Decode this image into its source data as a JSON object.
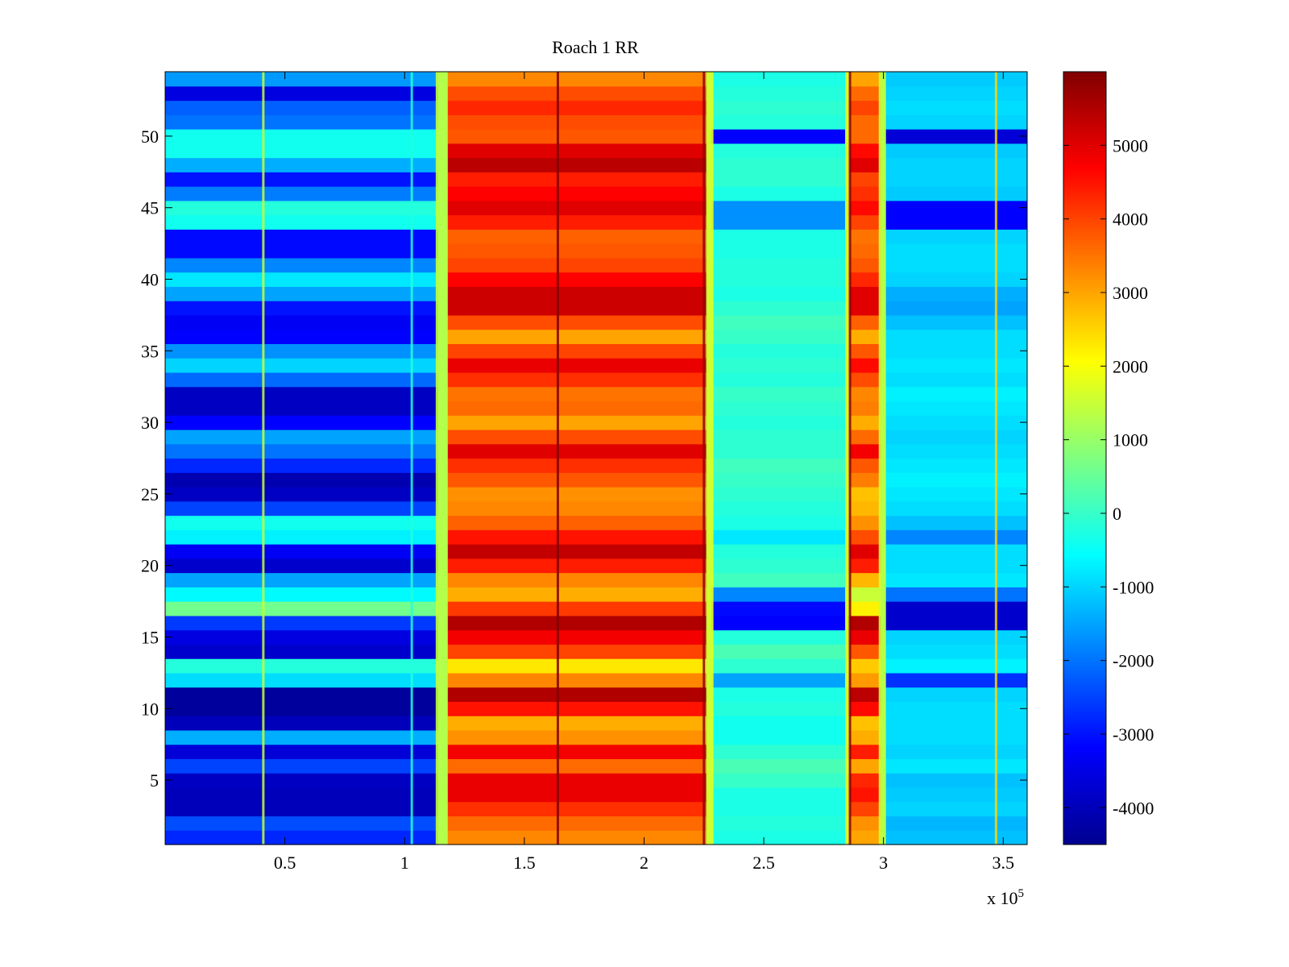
{
  "chart_data": {
    "type": "heatmap",
    "title": "Roach 1 RR",
    "xlabel": "",
    "ylabel": "",
    "x_exponent_label": "x 10",
    "x_exponent_power": "5",
    "xlim": [
      0,
      3.6
    ],
    "ylim": [
      0.5,
      54.5
    ],
    "x_ticks": [
      0.5,
      1,
      1.5,
      2,
      2.5,
      3,
      3.5
    ],
    "x_tick_labels": [
      "0.5",
      "1",
      "1.5",
      "2",
      "2.5",
      "3",
      "3.5"
    ],
    "y_ticks": [
      5,
      10,
      15,
      20,
      25,
      30,
      35,
      40,
      45,
      50
    ],
    "y_tick_labels": [
      "5",
      "10",
      "15",
      "20",
      "25",
      "30",
      "35",
      "40",
      "45",
      "50"
    ],
    "rows": 54,
    "colormap": "jet",
    "colorbar": {
      "clim": [
        -4500,
        6000
      ],
      "ticks": [
        -4000,
        -3000,
        -2000,
        -1000,
        0,
        1000,
        2000,
        3000,
        4000,
        5000
      ],
      "tick_labels": [
        "-4000",
        "-3000",
        "-2000",
        "-1000",
        "0",
        "1000",
        "2000",
        "3000",
        "4000",
        "5000"
      ]
    },
    "segments": [
      {
        "x_start": 0.0,
        "x_end": 1.14,
        "label": "low"
      },
      {
        "x_start": 1.18,
        "x_end": 2.26,
        "label": "high"
      },
      {
        "x_start": 2.28,
        "x_end": 2.84,
        "label": "mid"
      },
      {
        "x_start": 2.85,
        "x_end": 2.99,
        "label": "high-narrow"
      },
      {
        "x_start": 3.01,
        "x_end": 3.6,
        "label": "mid"
      }
    ],
    "row_values": {
      "low": [
        -2800,
        -2400,
        -3900,
        -3900,
        -3800,
        -2500,
        -3600,
        -1400,
        -3900,
        -4200,
        -4200,
        -900,
        -200,
        -3700,
        -3500,
        -2600,
        600,
        -600,
        -1500,
        -3700,
        -3300,
        -700,
        -400,
        -2500,
        -3800,
        -4000,
        -2800,
        -2000,
        -1500,
        -3200,
        -3800,
        -3800,
        -2100,
        -1000,
        -1700,
        -3200,
        -3300,
        -3000,
        -1500,
        -800,
        -1800,
        -3100,
        -3100,
        -400,
        -200,
        -1900,
        -3000,
        -1400,
        -400,
        -400,
        -2000,
        -2200,
        -3500,
        -1600
      ],
      "high": [
        3300,
        3600,
        4200,
        4900,
        4900,
        3600,
        4800,
        3200,
        2900,
        4500,
        5500,
        3300,
        2300,
        4000,
        4800,
        5500,
        4100,
        2900,
        3300,
        4400,
        5300,
        4500,
        3700,
        3300,
        3200,
        3800,
        4200,
        5000,
        3900,
        3000,
        3600,
        3500,
        4200,
        4900,
        4000,
        3000,
        3900,
        5200,
        5200,
        4700,
        4000,
        3800,
        3700,
        4400,
        5000,
        4700,
        4400,
        5400,
        5000,
        3800,
        3900,
        4300,
        3900,
        3300
      ],
      "mid": [
        -300,
        -200,
        -300,
        -300,
        0,
        200,
        -100,
        -400,
        -400,
        -200,
        -300,
        -1500,
        -100,
        200,
        -200,
        -3200,
        -3100,
        -1800,
        100,
        -100,
        -200,
        -800,
        -300,
        -200,
        -100,
        0,
        100,
        -100,
        -100,
        -200,
        -100,
        0,
        -200,
        -100,
        -200,
        0,
        100,
        -100,
        -300,
        -200,
        -200,
        -300,
        -300,
        -1700,
        -1700,
        -300,
        -100,
        -100,
        -200,
        -3200,
        -200,
        -100,
        -200,
        -300
      ],
      "mid_right": [
        -1200,
        -1300,
        -1000,
        -1100,
        -1200,
        -800,
        -1000,
        -900,
        -900,
        -900,
        -1000,
        -2700,
        -700,
        -900,
        -1000,
        -3700,
        -3700,
        -2000,
        -800,
        -900,
        -900,
        -1800,
        -1200,
        -900,
        -800,
        -700,
        -800,
        -900,
        -1000,
        -900,
        -800,
        -700,
        -900,
        -800,
        -900,
        -900,
        -1200,
        -1500,
        -1400,
        -1000,
        -900,
        -900,
        -1000,
        -3200,
        -3200,
        -1100,
        -1000,
        -1000,
        -1100,
        -3600,
        -1000,
        -900,
        -1000,
        -1100
      ],
      "high_narrow": [
        3000,
        3200,
        4000,
        4500,
        4300,
        3000,
        4400,
        2900,
        2700,
        4600,
        5400,
        3100,
        2600,
        3800,
        4900,
        5500,
        2200,
        1500,
        2800,
        4400,
        5000,
        3900,
        3200,
        2800,
        2700,
        3400,
        3800,
        4800,
        3600,
        2900,
        3400,
        3300,
        3900,
        4600,
        3800,
        2900,
        3700,
        5000,
        5000,
        4300,
        3800,
        3600,
        3500,
        4000,
        4600,
        4200,
        4000,
        5000,
        4600,
        3600,
        3600,
        4000,
        3600,
        3000
      ]
    },
    "stripes": [
      {
        "x": 0.41,
        "value": 1500
      },
      {
        "x": 1.03,
        "value": -200
      },
      {
        "x": 1.64,
        "value": 6000
      },
      {
        "x": 2.25,
        "value": 5800
      },
      {
        "x": 2.86,
        "value": 6000
      },
      {
        "x": 3.47,
        "value": 2500
      }
    ]
  }
}
